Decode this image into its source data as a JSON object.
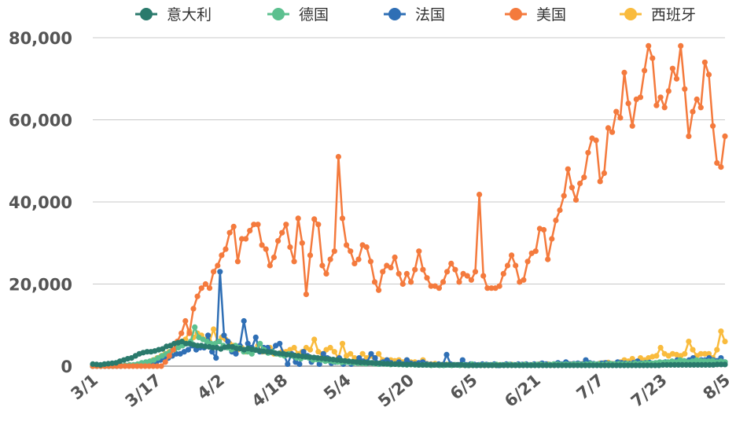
{
  "chart_data": {
    "type": "line",
    "title": "",
    "xlabel": "",
    "ylabel": "",
    "x_start": "3/1",
    "x_end": "8/5",
    "ylim": [
      0,
      80000
    ],
    "yticks": [
      0,
      20000,
      40000,
      60000,
      80000
    ],
    "ytick_labels": [
      "0",
      "20,000",
      "40,000",
      "60,000",
      "80,000"
    ],
    "xtick_labels": [
      "3/1",
      "3/17",
      "4/2",
      "4/18",
      "5/4",
      "5/20",
      "6/5",
      "6/21",
      "7/7",
      "7/23",
      "8/5"
    ],
    "grid": true,
    "legend_position": "top",
    "legend": [
      {
        "name": "意大利",
        "color": "#2a7a6c"
      },
      {
        "name": "德国",
        "color": "#5cc08f"
      },
      {
        "name": "法国",
        "color": "#2f6fb5"
      },
      {
        "name": "美国",
        "color": "#f47a3d"
      },
      {
        "name": "西班牙",
        "color": "#f9bb3d"
      }
    ],
    "series": [
      {
        "name": "美国",
        "color": "#f47a3d",
        "values": [
          0,
          0,
          0,
          0,
          0,
          0,
          0,
          0,
          0,
          0,
          0,
          0,
          0,
          0,
          0,
          0,
          0,
          0,
          1000,
          2500,
          4000,
          6000,
          8000,
          11000,
          8000,
          14000,
          17000,
          19000,
          20000,
          19000,
          23000,
          24500,
          27000,
          28500,
          32500,
          34000,
          25500,
          31000,
          31000,
          33000,
          34500,
          34500,
          29500,
          28500,
          24500,
          26500,
          30500,
          32500,
          34500,
          29000,
          25500,
          36000,
          30000,
          17500,
          27000,
          35800,
          34500,
          24500,
          22500,
          26000,
          28000,
          51000,
          36000,
          29500,
          28000,
          25000,
          26000,
          29500,
          29000,
          25500,
          20500,
          18500,
          23000,
          24500,
          24000,
          26500,
          22500,
          20000,
          22500,
          20500,
          23500,
          28000,
          23500,
          21500,
          19500,
          19500,
          19000,
          20500,
          23000,
          25000,
          23500,
          20500,
          22500,
          22000,
          21000,
          23000,
          41800,
          22000,
          19000,
          19000,
          19000,
          19500,
          22500,
          24500,
          27000,
          24500,
          20500,
          21000,
          25500,
          27500,
          28000,
          33500,
          33200,
          26000,
          31000,
          35500,
          38000,
          41500,
          48000,
          43500,
          40500,
          44500,
          46000,
          52000,
          55500,
          55000,
          45000,
          47000,
          58000,
          57000,
          62000,
          60500,
          71500,
          64000,
          58500,
          65000,
          65500,
          72000,
          78000,
          75000,
          63500,
          65500,
          63000,
          67000,
          72500,
          70000,
          78000,
          67500,
          56000,
          62000,
          65000,
          63000,
          74000,
          71000,
          58500,
          49500,
          48500,
          56000
        ]
      },
      {
        "name": "意大利",
        "color": "#2a7a6c",
        "values": [
          500,
          400,
          300,
          500,
          600,
          700,
          800,
          1200,
          1500,
          1800,
          2000,
          2500,
          3000,
          3300,
          3500,
          3500,
          3700,
          4000,
          4200,
          4800,
          5000,
          5500,
          5700,
          6000,
          5500,
          5500,
          5200,
          5000,
          5000,
          4800,
          4700,
          4500,
          4500,
          4200,
          4600,
          4800,
          4700,
          4300,
          4300,
          4000,
          4300,
          4100,
          3900,
          3700,
          3600,
          3500,
          3400,
          3200,
          3100,
          3000,
          2800,
          2700,
          2600,
          2500,
          2400,
          2300,
          2200,
          2100,
          2000,
          1900,
          1800,
          1700,
          1600,
          1500,
          1400,
          1300,
          1200,
          1100,
          1000,
          900,
          900,
          800,
          800,
          700,
          700,
          600,
          600,
          500,
          500,
          500,
          400,
          400,
          400,
          400,
          300,
          300,
          300,
          300,
          300,
          300,
          300,
          300,
          300,
          300,
          300,
          300,
          200,
          200,
          200,
          200,
          200,
          200,
          200,
          200,
          200,
          200,
          200,
          200,
          200,
          200,
          200,
          200,
          200,
          200,
          200,
          200,
          200,
          200,
          200,
          200,
          200,
          200,
          200,
          200,
          200,
          200,
          200,
          200,
          200,
          200,
          200,
          200,
          200,
          200,
          200,
          200,
          200,
          200,
          200,
          200,
          200,
          200,
          200,
          200,
          200,
          200,
          200,
          300,
          300,
          300,
          300,
          300,
          300,
          300,
          300,
          300,
          300,
          300,
          300,
          300,
          300,
          400,
          400,
          400
        ]
      },
      {
        "name": "德国",
        "color": "#5cc08f",
        "values": [
          0,
          0,
          0,
          0,
          0,
          0,
          100,
          100,
          200,
          300,
          300,
          500,
          800,
          1000,
          1200,
          1500,
          2000,
          2500,
          3000,
          3500,
          4000,
          4500,
          5000,
          5500,
          6000,
          9500,
          7000,
          6500,
          6000,
          5500,
          5500,
          6000,
          5000,
          4500,
          4000,
          5000,
          4500,
          3500,
          3500,
          3000,
          4000,
          5500,
          4000,
          3200,
          3500,
          3000,
          2800,
          2500,
          3000,
          2500,
          2000,
          1800,
          2200,
          2000,
          1500,
          1600,
          1500,
          1200,
          1300,
          1100,
          1000,
          900,
          1000,
          900,
          800,
          700,
          700,
          600,
          800,
          600,
          500,
          600,
          500,
          400,
          500,
          400,
          400,
          300,
          400,
          300,
          300,
          300,
          300,
          200,
          300,
          200,
          200,
          300,
          200,
          300,
          200,
          300,
          200,
          500,
          200,
          300,
          300,
          300,
          300,
          400,
          300,
          300,
          400,
          300,
          300,
          300,
          400,
          300,
          300,
          400,
          400,
          300,
          400,
          500,
          500,
          400,
          500,
          400,
          500,
          500,
          400,
          500,
          600,
          500,
          500,
          400,
          500,
          600,
          500,
          600,
          500,
          600,
          500,
          700,
          600,
          700,
          800,
          700,
          800,
          1000,
          900,
          1000,
          1200,
          1000,
          1500,
          1300,
          1000,
          1200,
          1500,
          1300,
          1200,
          1200,
          1300,
          1000,
          1200,
          1000
        ]
      },
      {
        "name": "法国",
        "color": "#2f6fb5",
        "values": [
          0,
          0,
          0,
          0,
          0,
          0,
          0,
          0,
          100,
          100,
          200,
          300,
          400,
          500,
          600,
          800,
          1000,
          1500,
          1800,
          2000,
          2500,
          3000,
          3000,
          3500,
          4000,
          5000,
          4000,
          4500,
          4500,
          7500,
          3500,
          2000,
          23000,
          7500,
          6000,
          3500,
          3000,
          5000,
          11000,
          5500,
          4500,
          7000,
          3500,
          4500,
          4500,
          3500,
          5000,
          5500,
          3000,
          500,
          3000,
          1000,
          500,
          3500,
          2500,
          1000,
          2000,
          500,
          3000,
          2000,
          700,
          1000,
          2000,
          500,
          1000,
          500,
          1000,
          2000,
          1200,
          1000,
          3000,
          2000,
          500,
          1000,
          1500,
          800,
          500,
          1000,
          500,
          1500,
          700,
          500,
          800,
          1000,
          500,
          400,
          300,
          500,
          300,
          2800,
          500,
          300,
          300,
          1500,
          300,
          500,
          400,
          300,
          500,
          400,
          300,
          500,
          200,
          300,
          500,
          400,
          300,
          500,
          400,
          500,
          300,
          500,
          400,
          700,
          500,
          300,
          500,
          800,
          500,
          1000,
          500,
          600,
          700,
          500,
          1500,
          800,
          600,
          500,
          700,
          800,
          600,
          500,
          1000,
          800,
          700,
          600,
          800,
          1200,
          700,
          800,
          900,
          600,
          700,
          800,
          1000,
          700,
          800,
          1500,
          800,
          1000,
          1500,
          2000,
          1000,
          1500,
          1500,
          2000,
          1500,
          1300,
          2000,
          1000
        ]
      },
      {
        "name": "西班牙",
        "color": "#f9bb3d",
        "values": [
          0,
          0,
          0,
          0,
          0,
          0,
          0,
          0,
          100,
          100,
          200,
          300,
          500,
          800,
          1000,
          1500,
          2000,
          2500,
          3000,
          3500,
          4000,
          5000,
          5500,
          6500,
          8500,
          7000,
          8000,
          7500,
          6500,
          6000,
          9000,
          6000,
          7000,
          6500,
          5500,
          5000,
          4000,
          4500,
          3500,
          4500,
          4000,
          5000,
          3500,
          3500,
          4500,
          3000,
          3000,
          3500,
          3500,
          4000,
          4500,
          3000,
          3500,
          4500,
          4000,
          6500,
          3500,
          3000,
          4000,
          4500,
          3500,
          2000,
          5500,
          2500,
          3000,
          2000,
          1500,
          3000,
          2000,
          2500,
          2000,
          3000,
          1500,
          1500,
          1500,
          1300,
          1500,
          1000,
          1500,
          1000,
          1000,
          700,
          1500,
          600,
          500,
          600,
          400,
          400,
          400,
          300,
          300,
          300,
          300,
          300,
          300,
          300,
          300,
          300,
          300,
          300,
          300,
          300,
          300,
          300,
          400,
          300,
          300,
          400,
          300,
          300,
          400,
          500,
          400,
          500,
          300,
          500,
          500,
          400,
          600,
          500,
          400,
          500,
          700,
          600,
          500,
          400,
          700,
          800,
          900,
          600,
          700,
          1000,
          1500,
          1200,
          1800,
          1000,
          2000,
          1500,
          2000,
          2300,
          2500,
          4500,
          3000,
          2500,
          3000,
          2800,
          2500,
          3000,
          6000,
          4000,
          2500,
          3000,
          3000,
          3000,
          2000,
          4000,
          8500,
          6000
        ]
      }
    ]
  }
}
